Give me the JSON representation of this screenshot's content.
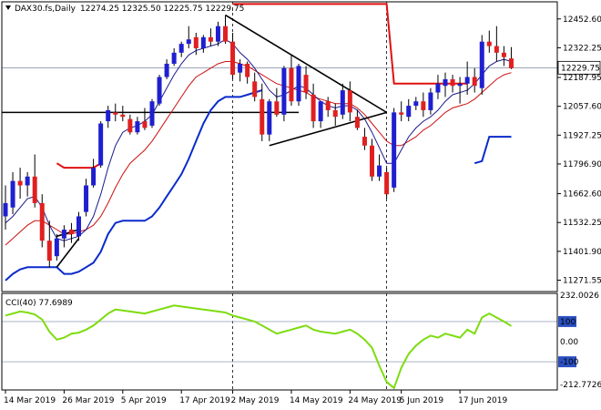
{
  "header": {
    "symbol": "DAX30.fs,Daily",
    "ohlc": "12274.25 12325.50 12225.75 12229.75"
  },
  "price_tag": "12229.75",
  "indicator_label": "CCI(40) 77.6989",
  "colors": {
    "bull": "#1f1fd0",
    "bear": "#e02020",
    "wick": "#000000",
    "ma_fast": "#1a1a8c",
    "ma_slow": "#cc1010",
    "env_low": "#0a2acb",
    "env_high": "#e01010",
    "cci": "#7ddc10",
    "trend": "#000000",
    "tag_bg": "#ffffff"
  },
  "chart_data": [
    {
      "type": "candlestick",
      "ylim": [
        11220,
        12530
      ],
      "y_ticks": [
        12452.6,
        12322.25,
        12187.95,
        12057.6,
        11927.25,
        11796.9,
        11662.6,
        11532.25,
        11401.9,
        11271.55
      ],
      "y_tick_labels": [
        "12452.60",
        "12322.25",
        "12187.95",
        "12057.60",
        "11927.25",
        "11796.90",
        "11662.60",
        "11532.25",
        "11401.90",
        "11271.55"
      ],
      "x_labels": [
        {
          "label": "14 Mar 2019",
          "i": 0
        },
        {
          "label": "26 Mar 2019",
          "i": 8
        },
        {
          "label": "5 Apr 2019",
          "i": 16
        },
        {
          "label": "17 Apr 2019",
          "i": 24
        },
        {
          "label": "2 May 2019",
          "i": 31
        },
        {
          "label": "14 May 2019",
          "i": 39
        },
        {
          "label": "24 May 2019",
          "i": 47
        },
        {
          "label": "5 Jun 2019",
          "i": 54
        },
        {
          "label": "17 Jun 2019",
          "i": 62
        }
      ],
      "candles": [
        {
          "o": 11560,
          "h": 11700,
          "l": 11500,
          "c": 11620
        },
        {
          "o": 11600,
          "h": 11760,
          "l": 11570,
          "c": 11720
        },
        {
          "o": 11720,
          "h": 11780,
          "l": 11640,
          "c": 11700
        },
        {
          "o": 11700,
          "h": 11760,
          "l": 11650,
          "c": 11740
        },
        {
          "o": 11740,
          "h": 11840,
          "l": 11600,
          "c": 11620
        },
        {
          "o": 11620,
          "h": 11660,
          "l": 11420,
          "c": 11450
        },
        {
          "o": 11450,
          "h": 11540,
          "l": 11330,
          "c": 11360
        },
        {
          "o": 11380,
          "h": 11480,
          "l": 11360,
          "c": 11460
        },
        {
          "o": 11460,
          "h": 11520,
          "l": 11420,
          "c": 11500
        },
        {
          "o": 11500,
          "h": 11530,
          "l": 11440,
          "c": 11480
        },
        {
          "o": 11470,
          "h": 11580,
          "l": 11450,
          "c": 11560
        },
        {
          "o": 11580,
          "h": 11730,
          "l": 11560,
          "c": 11700
        },
        {
          "o": 11700,
          "h": 11820,
          "l": 11690,
          "c": 11780
        },
        {
          "o": 11790,
          "h": 11990,
          "l": 11780,
          "c": 11980
        },
        {
          "o": 11990,
          "h": 12060,
          "l": 11960,
          "c": 12040
        },
        {
          "o": 12030,
          "h": 12070,
          "l": 11990,
          "c": 12020
        },
        {
          "o": 12020,
          "h": 12060,
          "l": 11990,
          "c": 12010
        },
        {
          "o": 12000,
          "h": 12020,
          "l": 11930,
          "c": 11940
        },
        {
          "o": 11940,
          "h": 12010,
          "l": 11930,
          "c": 11990
        },
        {
          "o": 11990,
          "h": 12050,
          "l": 11950,
          "c": 11960
        },
        {
          "o": 11970,
          "h": 12090,
          "l": 11960,
          "c": 12080
        },
        {
          "o": 12070,
          "h": 12200,
          "l": 12060,
          "c": 12190
        },
        {
          "o": 12190,
          "h": 12270,
          "l": 12180,
          "c": 12250
        },
        {
          "o": 12250,
          "h": 12320,
          "l": 12240,
          "c": 12300
        },
        {
          "o": 12300,
          "h": 12350,
          "l": 12280,
          "c": 12340
        },
        {
          "o": 12340,
          "h": 12420,
          "l": 12320,
          "c": 12360
        },
        {
          "o": 12370,
          "h": 12390,
          "l": 12290,
          "c": 12320
        },
        {
          "o": 12320,
          "h": 12380,
          "l": 12300,
          "c": 12370
        },
        {
          "o": 12370,
          "h": 12410,
          "l": 12330,
          "c": 12350
        },
        {
          "o": 12350,
          "h": 12440,
          "l": 12330,
          "c": 12420
        },
        {
          "o": 12420,
          "h": 12470,
          "l": 12340,
          "c": 12350
        },
        {
          "o": 12350,
          "h": 12390,
          "l": 12180,
          "c": 12200
        },
        {
          "o": 12210,
          "h": 12270,
          "l": 12170,
          "c": 12250
        },
        {
          "o": 12250,
          "h": 12260,
          "l": 12160,
          "c": 12190
        },
        {
          "o": 12170,
          "h": 12210,
          "l": 12080,
          "c": 12100
        },
        {
          "o": 12090,
          "h": 12160,
          "l": 11900,
          "c": 11930
        },
        {
          "o": 11930,
          "h": 12090,
          "l": 11900,
          "c": 12080
        },
        {
          "o": 12080,
          "h": 12140,
          "l": 12010,
          "c": 12020
        },
        {
          "o": 12020,
          "h": 12240,
          "l": 11990,
          "c": 12230
        },
        {
          "o": 12230,
          "h": 12290,
          "l": 12060,
          "c": 12080
        },
        {
          "o": 12080,
          "h": 12250,
          "l": 12060,
          "c": 12240
        },
        {
          "o": 12200,
          "h": 12240,
          "l": 12090,
          "c": 12120
        },
        {
          "o": 12110,
          "h": 12160,
          "l": 11960,
          "c": 11990
        },
        {
          "o": 11990,
          "h": 12080,
          "l": 11960,
          "c": 12080
        },
        {
          "o": 12080,
          "h": 12100,
          "l": 12010,
          "c": 12040
        },
        {
          "o": 12040,
          "h": 12070,
          "l": 11970,
          "c": 12010
        },
        {
          "o": 12020,
          "h": 12160,
          "l": 12000,
          "c": 12130
        },
        {
          "o": 12130,
          "h": 12170,
          "l": 11990,
          "c": 12030
        },
        {
          "o": 12010,
          "h": 12040,
          "l": 11950,
          "c": 11960
        },
        {
          "o": 11920,
          "h": 11960,
          "l": 11860,
          "c": 11880
        },
        {
          "o": 11880,
          "h": 11910,
          "l": 11720,
          "c": 11740
        },
        {
          "o": 11740,
          "h": 11840,
          "l": 11720,
          "c": 11790
        },
        {
          "o": 11760,
          "h": 11780,
          "l": 11640,
          "c": 11660
        },
        {
          "o": 11690,
          "h": 12050,
          "l": 11670,
          "c": 12030
        },
        {
          "o": 12030,
          "h": 12080,
          "l": 11990,
          "c": 12020
        },
        {
          "o": 12010,
          "h": 12090,
          "l": 11990,
          "c": 12060
        },
        {
          "o": 12060,
          "h": 12100,
          "l": 12040,
          "c": 12080
        },
        {
          "o": 12080,
          "h": 12120,
          "l": 12010,
          "c": 12040
        },
        {
          "o": 12040,
          "h": 12140,
          "l": 12020,
          "c": 12120
        },
        {
          "o": 12120,
          "h": 12200,
          "l": 12090,
          "c": 12160
        },
        {
          "o": 12150,
          "h": 12210,
          "l": 12100,
          "c": 12180
        },
        {
          "o": 12180,
          "h": 12200,
          "l": 12120,
          "c": 12150
        },
        {
          "o": 12150,
          "h": 12190,
          "l": 12070,
          "c": 12160
        },
        {
          "o": 12160,
          "h": 12260,
          "l": 12110,
          "c": 12190
        },
        {
          "o": 12190,
          "h": 12230,
          "l": 12120,
          "c": 12150
        },
        {
          "o": 12140,
          "h": 12380,
          "l": 12110,
          "c": 12350
        },
        {
          "o": 12350,
          "h": 12400,
          "l": 12300,
          "c": 12330
        },
        {
          "o": 12330,
          "h": 12420,
          "l": 12260,
          "c": 12300
        },
        {
          "o": 12300,
          "h": 12330,
          "l": 12240,
          "c": 12280
        },
        {
          "o": 12274.25,
          "h": 12325.5,
          "l": 12225.75,
          "c": 12229.75
        }
      ],
      "ma_fast": [
        11530,
        11560,
        11600,
        11640,
        11650,
        11600,
        11520,
        11460,
        11450,
        11460,
        11470,
        11500,
        11560,
        11660,
        11780,
        11880,
        11940,
        11960,
        11970,
        11990,
        12020,
        12080,
        12140,
        12200,
        12250,
        12290,
        12310,
        12320,
        12330,
        12340,
        12360,
        12340,
        12300,
        12270,
        12230,
        12180,
        12130,
        12100,
        12110,
        12130,
        12150,
        12140,
        12110,
        12080,
        12060,
        12050,
        12060,
        12060,
        12040,
        12000,
        11940,
        11870,
        11800,
        11800,
        11860,
        11920,
        11960,
        11990,
        12010,
        12040,
        12080,
        12110,
        12120,
        12130,
        12160,
        12200,
        12240,
        12260,
        12270,
        12260
      ],
      "ma_slow": [
        11430,
        11460,
        11490,
        11520,
        11540,
        11540,
        11520,
        11500,
        11480,
        11480,
        11490,
        11500,
        11520,
        11560,
        11620,
        11690,
        11750,
        11800,
        11830,
        11860,
        11900,
        11950,
        12000,
        12050,
        12100,
        12150,
        12190,
        12210,
        12230,
        12250,
        12260,
        12260,
        12250,
        12240,
        12220,
        12200,
        12180,
        12160,
        12150,
        12140,
        12130,
        12120,
        12100,
        12090,
        12080,
        12070,
        12070,
        12070,
        12050,
        12020,
        11980,
        11940,
        11900,
        11880,
        11880,
        11900,
        11920,
        11950,
        11970,
        12000,
        12030,
        12050,
        12060,
        12070,
        12090,
        12120,
        12150,
        12180,
        12200,
        12210
      ],
      "env_low": [
        11270,
        11300,
        11320,
        11330,
        11330,
        11330,
        11330,
        11330,
        11300,
        11300,
        11310,
        11330,
        11350,
        11400,
        11480,
        11530,
        11540,
        11540,
        11540,
        11540,
        11560,
        11600,
        11650,
        11700,
        11750,
        11820,
        11900,
        11980,
        12040,
        12080,
        12100,
        12100,
        12100,
        12110,
        12120,
        12130,
        null,
        null,
        null,
        null,
        null,
        null,
        null,
        null,
        null,
        null,
        null,
        null,
        null,
        null,
        null,
        null,
        null,
        null,
        null,
        null,
        null,
        null,
        null,
        null,
        null,
        null,
        null,
        null,
        11800,
        11810,
        11920,
        11920,
        11920,
        11920
      ],
      "env_high": [
        null,
        null,
        null,
        null,
        null,
        null,
        null,
        11800,
        11780,
        11780,
        11780,
        11780,
        11780,
        11800,
        null,
        null,
        null,
        null,
        null,
        null,
        null,
        null,
        null,
        null,
        null,
        null,
        null,
        null,
        null,
        null,
        null,
        12520,
        12520,
        12520,
        12520,
        12520,
        12520,
        12520,
        12520,
        12520,
        12520,
        12520,
        12520,
        12520,
        12520,
        12520,
        12520,
        12520,
        12520,
        12520,
        12520,
        12520,
        12520,
        12160,
        12160,
        12160,
        12160,
        12160,
        12160,
        12160,
        12160,
        12160,
        12160,
        12160,
        null,
        null,
        null,
        null,
        null,
        null
      ],
      "trend_lines": [
        {
          "i0": 30,
          "v0": 12470,
          "i1": 52,
          "v1": 12030
        },
        {
          "i0": 36,
          "v0": 11880,
          "i1": 52,
          "v1": 12030
        },
        {
          "i0": 7,
          "v0": 11470,
          "i1": 10,
          "v1": 11500
        },
        {
          "i0": 7,
          "v0": 11330,
          "i1": 10,
          "v1": 11460
        }
      ],
      "h_lines": [
        {
          "v": 12030,
          "i0": -1,
          "i1": 40
        },
        {
          "v": 12232,
          "i0": -1,
          "i1": 80
        }
      ],
      "v_lines": [
        31,
        52
      ]
    },
    {
      "type": "line",
      "ylim": [
        -240,
        240
      ],
      "y_ticks": [
        232.0026,
        100,
        0,
        -100,
        -212.7726
      ],
      "y_tick_labels": [
        "232.0026",
        "100",
        "0.00",
        "-100",
        "-212.7726"
      ],
      "series": [
        {
          "values": [
            130,
            140,
            150,
            145,
            135,
            110,
            50,
            10,
            20,
            40,
            45,
            60,
            80,
            110,
            140,
            160,
            155,
            150,
            145,
            140,
            150,
            160,
            170,
            180,
            175,
            170,
            165,
            160,
            155,
            150,
            145,
            130,
            120,
            110,
            100,
            80,
            60,
            40,
            50,
            60,
            70,
            80,
            60,
            50,
            45,
            40,
            50,
            60,
            40,
            10,
            -30,
            -120,
            -200,
            -230,
            -130,
            -60,
            -20,
            10,
            30,
            20,
            40,
            30,
            20,
            60,
            40,
            120,
            140,
            120,
            100,
            77.6989
          ]
        }
      ],
      "h_lines": [
        100,
        -100
      ]
    }
  ]
}
